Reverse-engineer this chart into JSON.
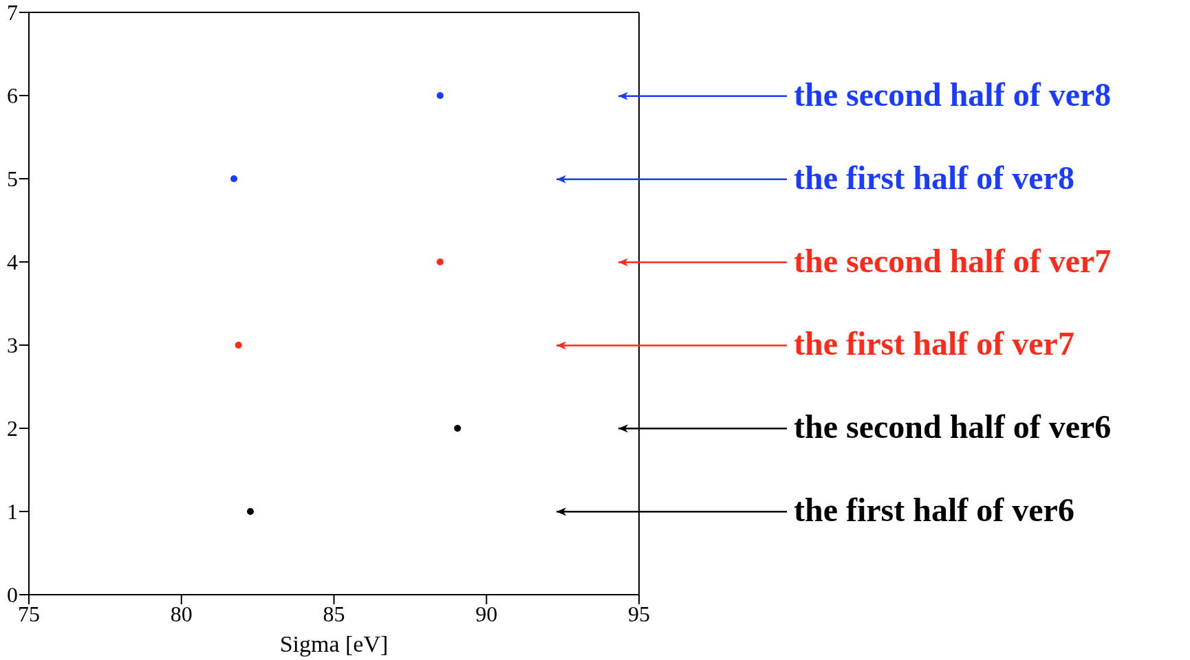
{
  "chart_data": {
    "type": "scatter",
    "xlabel": "Sigma [eV]",
    "xlim": [
      75,
      95
    ],
    "xticks": [
      75,
      80,
      85,
      90,
      95
    ],
    "ylim": [
      0,
      7
    ],
    "yticks": [
      0,
      1,
      2,
      3,
      4,
      5,
      6,
      7
    ],
    "legend": "right",
    "marker": "circle",
    "series": [
      {
        "name": "the first half of ver6",
        "color": "#000000",
        "x": [
          82.26
        ],
        "values": [
          1
        ]
      },
      {
        "name": "the second half of ver6",
        "color": "#000000",
        "x": [
          89.05
        ],
        "values": [
          2
        ]
      },
      {
        "name": "the first half of ver7",
        "color": "#ff2a1a",
        "x": [
          81.87
        ],
        "values": [
          3
        ]
      },
      {
        "name": "the second half of ver7",
        "color": "#ff2a1a",
        "x": [
          88.48
        ],
        "values": [
          4
        ]
      },
      {
        "name": "the first half of ver8",
        "color": "#1a3cff",
        "x": [
          81.72
        ],
        "values": [
          5
        ]
      },
      {
        "name": "the second half of ver8",
        "color": "#1a3cff",
        "x": [
          88.48
        ],
        "values": [
          6
        ]
      }
    ]
  }
}
